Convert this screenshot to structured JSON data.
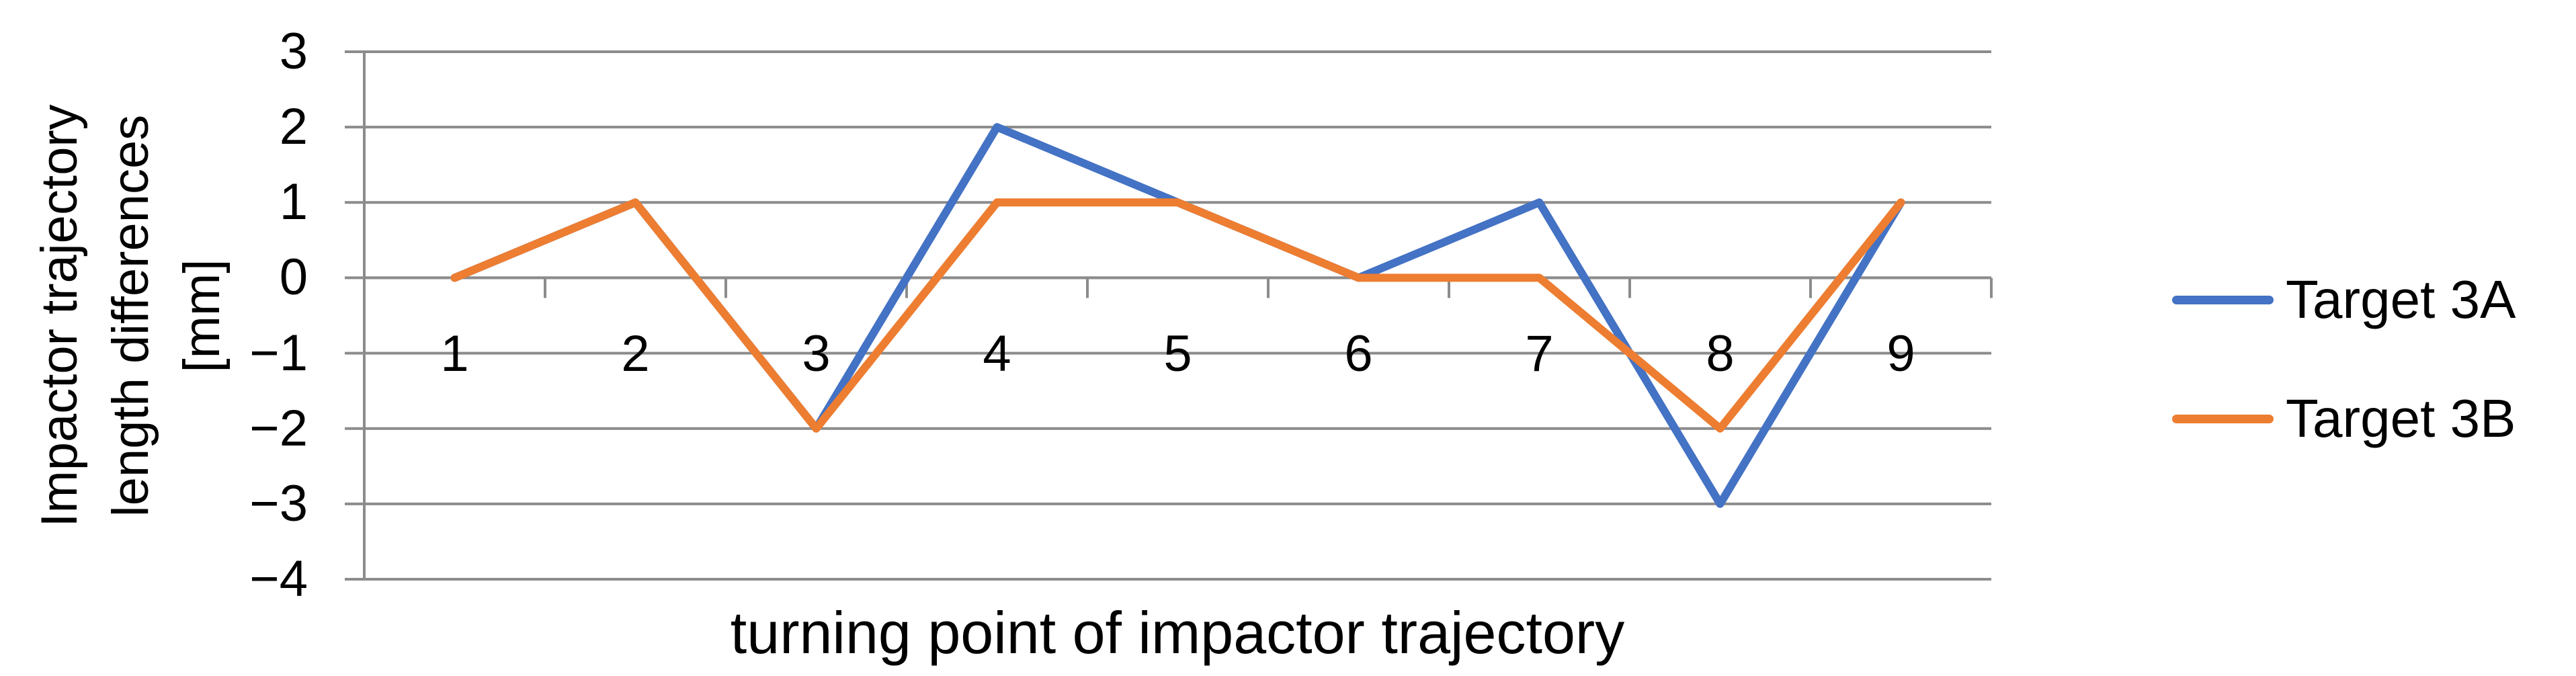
{
  "chart_data": {
    "type": "line",
    "title": "",
    "categories": [
      "1",
      "2",
      "3",
      "4",
      "5",
      "6",
      "7",
      "8",
      "9"
    ],
    "series": [
      {
        "name": "Target 3A",
        "color": "#4472C4",
        "values": [
          0,
          1,
          -2,
          2,
          1,
          0,
          1,
          -3,
          1
        ]
      },
      {
        "name": "Target 3B",
        "color": "#ED7D31",
        "values": [
          0,
          1,
          -2,
          1,
          1,
          0,
          0,
          -2,
          1
        ]
      }
    ],
    "xlabel": "turning point of impactor trajectory",
    "ylabel": "Impactor trajectory length differences [mm]",
    "ylabel_lines": [
      "Impactor trajectory",
      "length differences",
      "[mm]"
    ],
    "ylim": [
      -4,
      3
    ],
    "ytick_values": [
      3,
      2,
      1,
      0,
      -1,
      -2,
      -3,
      -4
    ],
    "grid": "horizontal-major",
    "legend_position": "right",
    "colors": {
      "gridline": "#8C8C8C",
      "axis": "#8C8C8C",
      "text": "#000000",
      "background": "#FFFFFF"
    }
  }
}
